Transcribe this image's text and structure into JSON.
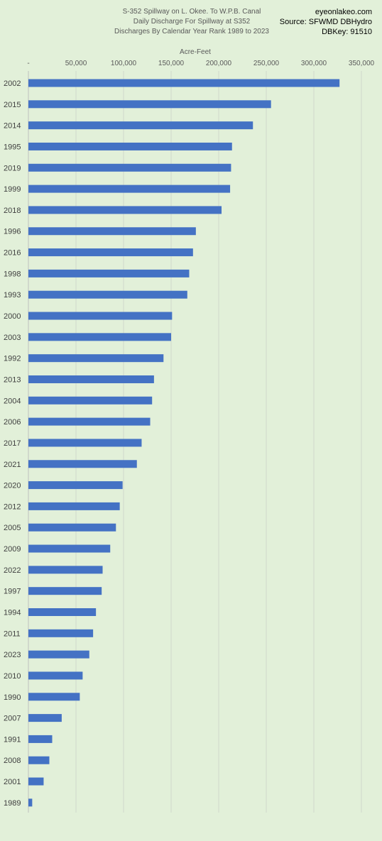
{
  "title_lines": [
    "S-352 Spillway on L. Okee. To W.P.B. Canal",
    "Daily Discharge For Spillway at S352",
    "Discharges By Calendar Year Rank 1989 to 2023"
  ],
  "source_lines": [
    "eyeonlakeo.com",
    "Source: SFWMD DBHydro",
    "DBKey: 91510"
  ],
  "chart_data": {
    "type": "bar",
    "orientation": "horizontal",
    "title": "S-352 Spillway on L. Okee. To W.P.B. Canal",
    "xlabel": "Acre-Feet",
    "ylabel": "",
    "xlim": [
      0,
      350000
    ],
    "x_ticks": [
      0,
      50000,
      100000,
      150000,
      200000,
      250000,
      300000,
      350000
    ],
    "x_tick_labels": [
      "-",
      "50,000",
      "100,000",
      "150,000",
      "200,000",
      "250,000",
      "300,000",
      "350,000"
    ],
    "axis_position": "top",
    "grid": true,
    "legend": "none",
    "bar_color": "#4472c4",
    "categories": [
      "2002",
      "2015",
      "2014",
      "1995",
      "2019",
      "1999",
      "2018",
      "1996",
      "2016",
      "1998",
      "1993",
      "2000",
      "2003",
      "1992",
      "2013",
      "2004",
      "2006",
      "2017",
      "2021",
      "2020",
      "2012",
      "2005",
      "2009",
      "2022",
      "1997",
      "1994",
      "2011",
      "2023",
      "2010",
      "1990",
      "2007",
      "1991",
      "2008",
      "2001",
      "1989"
    ],
    "values": [
      327000,
      255000,
      236000,
      214000,
      213000,
      212000,
      203000,
      176000,
      173000,
      169000,
      167000,
      151000,
      150000,
      142000,
      132000,
      130000,
      128000,
      119000,
      114000,
      99000,
      96000,
      92000,
      86000,
      78000,
      77000,
      71000,
      68000,
      64000,
      57000,
      54000,
      35000,
      25000,
      22000,
      16000,
      4000
    ]
  }
}
